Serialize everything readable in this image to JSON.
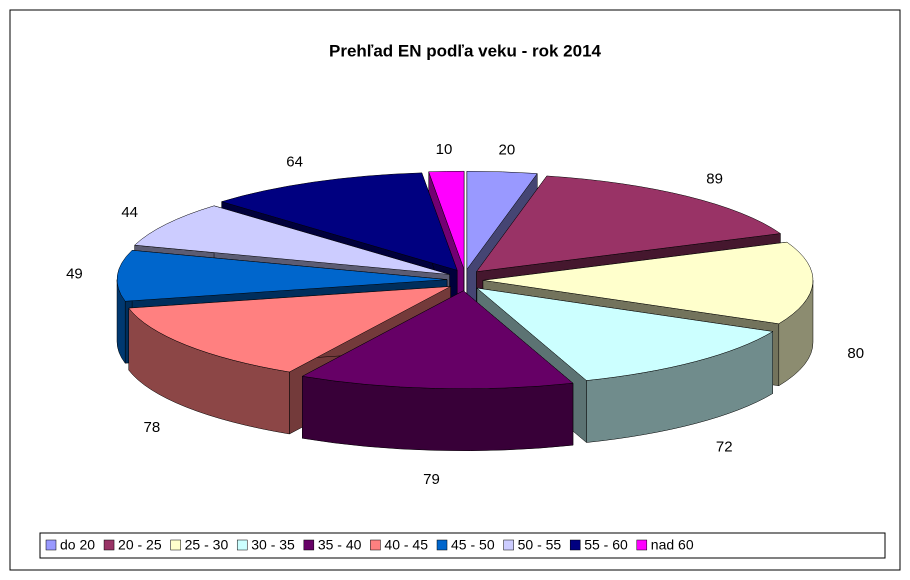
{
  "chart_data": {
    "type": "pie3d",
    "title": "Prehľad EN podľa veku - rok 2014",
    "categories": [
      "do 20",
      "20 - 25",
      "25 - 30",
      "30 - 35",
      "35 - 40",
      "40 - 45",
      "45 - 50",
      "50 - 55",
      "55 - 60",
      "nad 60"
    ],
    "values": [
      20,
      89,
      80,
      72,
      79,
      78,
      49,
      44,
      64,
      10
    ],
    "colors": [
      "#9999ff",
      "#993366",
      "#ffffcc",
      "#ccffff",
      "#660066",
      "#ff8080",
      "#0066cc",
      "#ccccff",
      "#000080",
      "#ff00ff"
    ],
    "legend": "bottom"
  }
}
